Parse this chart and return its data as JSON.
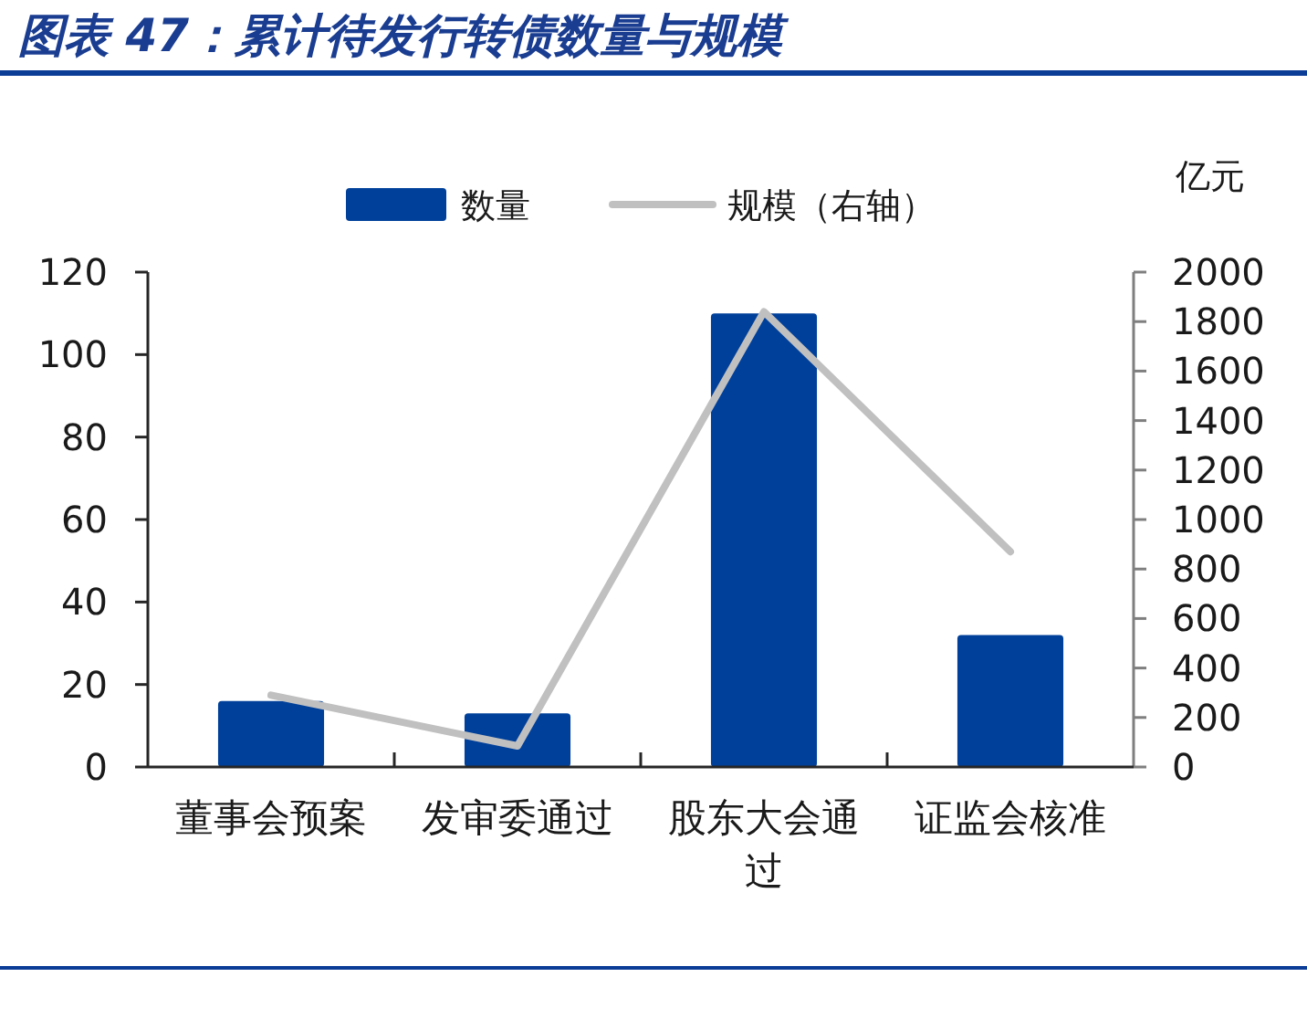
{
  "chart_data": {
    "type": "bar",
    "title": "图表 47：累计待发行转债数量与规模",
    "categories": [
      "董事会预案",
      "发审委通过",
      "股东大会通过",
      "证监会核准"
    ],
    "series": [
      {
        "name": "数量",
        "color": "#00409a",
        "values": [
          16,
          13,
          110,
          32
        ]
      },
      {
        "name": "规模（右轴）",
        "type": "line",
        "axis": "y2",
        "color": "#c0c0c0",
        "values": [
          290,
          85,
          1840,
          870
        ]
      }
    ],
    "y2label": "亿元",
    "ylim": [
      0,
      120
    ],
    "yticks": [
      0,
      20,
      40,
      60,
      80,
      100,
      120
    ],
    "y2lim": [
      0,
      2000
    ],
    "y2ticks": [
      0,
      200,
      400,
      600,
      800,
      1000,
      1200,
      1400,
      1600,
      1800,
      2000
    ],
    "legend": "top",
    "grid": false
  }
}
